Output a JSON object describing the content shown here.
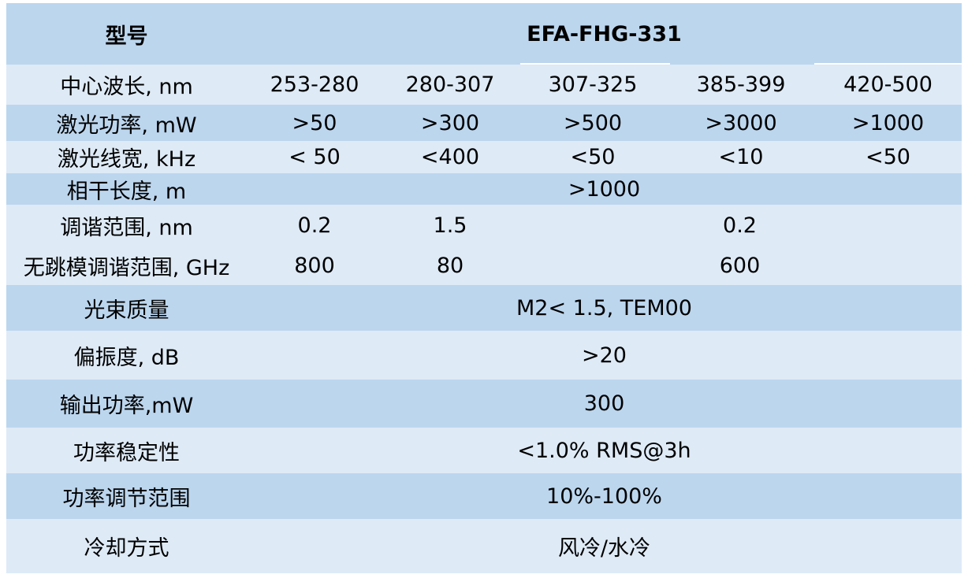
{
  "header": {
    "model_label": "型号",
    "model_value": "EFA-FHG-331"
  },
  "rows": {
    "wavelength": {
      "label": "中心波长, nm",
      "values": [
        "253-280",
        "280-307",
        "307-325",
        "385-399",
        "420-500"
      ]
    },
    "laser_power": {
      "label": "激光功率, mW",
      "values": [
        ">50",
        ">300",
        ">500",
        ">3000",
        ">1000"
      ]
    },
    "linewidth": {
      "label": "激光线宽, kHz",
      "values": [
        "< 50",
        "<400",
        "<50",
        "<10",
        "<50"
      ]
    },
    "coherence": {
      "label": "相干长度, m",
      "value": ">1000"
    },
    "tuning": {
      "label": "调谐范围, nm",
      "values": [
        "0.2",
        "1.5",
        "0.2"
      ]
    },
    "modehop": {
      "label": "无跳模调谐范围, GHz",
      "values": [
        "800",
        "80",
        "600"
      ]
    },
    "beam": {
      "label": "光束质量",
      "value": "M2< 1.5, TEM00"
    },
    "polarization": {
      "label": "偏振度, dB",
      "value": ">20"
    },
    "output_power": {
      "label": "输出功率,mW",
      "value": "300"
    },
    "stability": {
      "label": "功率稳定性",
      "value": "<1.0% RMS@3h"
    },
    "adjust": {
      "label": "功率调节范围",
      "value": "10%-100%"
    },
    "cooling": {
      "label": "冷却方式",
      "value": "风冷/水冷"
    }
  },
  "colors": {
    "dark_row": "#bcd6ee",
    "light_row": "#deeaf6"
  }
}
